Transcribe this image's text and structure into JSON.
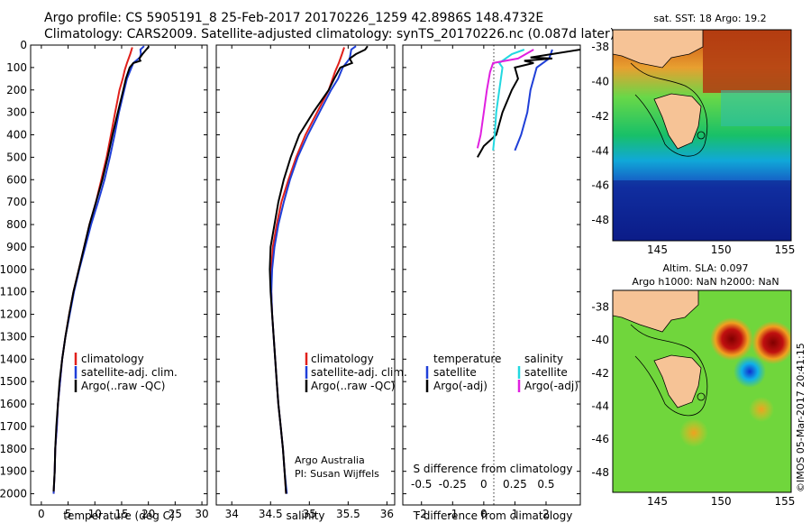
{
  "header": {
    "line1": "Argo profile: CS 5905191_8 25-Feb-2017 20170226_1259 42.8986S 148.4732E",
    "line2": "Climatology: CARS2009. Satellite-adjusted climatology: synTS_20170226.nc (0.087d later)"
  },
  "colors": {
    "climatology": "#e0201b",
    "satellite": "#1f3fd8",
    "argo": "#000000",
    "sat_salinity": "#22d8e0",
    "argo_salinity": "#e020e0"
  },
  "chart_data": [
    {
      "type": "line",
      "name": "temperature-panel",
      "xlabel": "temperature (deg C)",
      "xlim": [
        -2,
        31
      ],
      "ylim": [
        0,
        2050
      ],
      "y_reversed": true,
      "xticks": [
        0,
        5,
        10,
        15,
        20,
        25,
        30
      ],
      "yticks": [
        0,
        100,
        200,
        300,
        400,
        500,
        600,
        700,
        800,
        900,
        1000,
        1100,
        1200,
        1300,
        1400,
        1500,
        1600,
        1700,
        1800,
        1900,
        2000
      ],
      "legend": [
        "climatology",
        "satellite-adj. clim.",
        "Argo(..raw -QC)"
      ],
      "series": [
        {
          "name": "climatology",
          "color": "#e0201b",
          "points": [
            [
              17,
              10
            ],
            [
              16.6,
              40
            ],
            [
              16,
              80
            ],
            [
              15.6,
              110
            ],
            [
              15.2,
              150
            ],
            [
              14.6,
              200
            ],
            [
              13.8,
              300
            ],
            [
              13,
              400
            ],
            [
              12.2,
              500
            ],
            [
              11.2,
              600
            ],
            [
              10.2,
              700
            ],
            [
              9,
              800
            ],
            [
              8,
              900
            ],
            [
              7,
              1000
            ],
            [
              6,
              1100
            ],
            [
              5.2,
              1200
            ],
            [
              4.5,
              1300
            ],
            [
              3.9,
              1400
            ],
            [
              3.5,
              1500
            ],
            [
              3.1,
              1600
            ],
            [
              2.9,
              1700
            ],
            [
              2.6,
              1800
            ],
            [
              2.5,
              1900
            ],
            [
              2.3,
              2000
            ]
          ]
        },
        {
          "name": "satellite-adj. clim.",
          "color": "#1f3fd8",
          "points": [
            [
              19.2,
              5
            ],
            [
              18.5,
              20
            ],
            [
              18.6,
              40
            ],
            [
              18.4,
              55
            ],
            [
              17.2,
              80
            ],
            [
              16,
              150
            ],
            [
              15.5,
              200
            ],
            [
              14.5,
              300
            ],
            [
              13.7,
              400
            ],
            [
              12.8,
              500
            ],
            [
              11.8,
              600
            ],
            [
              10.6,
              700
            ],
            [
              9.3,
              800
            ],
            [
              8.2,
              900
            ],
            [
              7.1,
              1000
            ],
            [
              6.1,
              1100
            ],
            [
              5.3,
              1200
            ],
            [
              4.5,
              1300
            ],
            [
              3.9,
              1400
            ],
            [
              3.5,
              1500
            ],
            [
              3.1,
              1600
            ],
            [
              2.9,
              1700
            ],
            [
              2.6,
              1800
            ],
            [
              2.5,
              1900
            ],
            [
              2.3,
              2000
            ]
          ]
        },
        {
          "name": "Argo(..raw -QC)",
          "color": "#000000",
          "points": [
            [
              20.1,
              5
            ],
            [
              19.8,
              15
            ],
            [
              19.6,
              20
            ],
            [
              18.9,
              40
            ],
            [
              18.3,
              60
            ],
            [
              18.5,
              70
            ],
            [
              17.2,
              80
            ],
            [
              16.5,
              100
            ],
            [
              15.8,
              150
            ],
            [
              15.3,
              200
            ],
            [
              14.3,
              300
            ],
            [
              13.3,
              400
            ],
            [
              12.4,
              500
            ],
            [
              11.4,
              600
            ],
            [
              10.2,
              700
            ],
            [
              9,
              800
            ],
            [
              8,
              900
            ],
            [
              7,
              1000
            ],
            [
              6,
              1100
            ],
            [
              5.2,
              1200
            ],
            [
              4.5,
              1300
            ],
            [
              3.9,
              1400
            ],
            [
              3.4,
              1500
            ],
            [
              3.1,
              1600
            ],
            [
              2.8,
              1700
            ],
            [
              2.6,
              1800
            ],
            [
              2.5,
              1900
            ],
            [
              2.3,
              1990
            ]
          ]
        }
      ]
    },
    {
      "type": "line",
      "name": "salinity-panel",
      "xlabel": "salinity",
      "xlim": [
        33.8,
        36.1
      ],
      "ylim": [
        0,
        2050
      ],
      "y_reversed": true,
      "xticks": [
        34,
        34.5,
        35,
        35.5,
        36
      ],
      "legend": [
        "climatology",
        "satellite-adj. clim.",
        "Argo(..raw -QC)"
      ],
      "annotation": [
        "Argo Australia",
        "PI: Susan Wijffels"
      ],
      "series": [
        {
          "name": "climatology",
          "color": "#e0201b",
          "points": [
            [
              35.45,
              10
            ],
            [
              35.42,
              40
            ],
            [
              35.38,
              80
            ],
            [
              35.33,
              120
            ],
            [
              35.25,
              200
            ],
            [
              35.1,
              300
            ],
            [
              34.95,
              400
            ],
            [
              34.83,
              500
            ],
            [
              34.73,
              600
            ],
            [
              34.64,
              700
            ],
            [
              34.58,
              800
            ],
            [
              34.53,
              900
            ],
            [
              34.51,
              1000
            ],
            [
              34.51,
              1100
            ],
            [
              34.52,
              1200
            ],
            [
              34.54,
              1300
            ],
            [
              34.56,
              1400
            ],
            [
              34.58,
              1500
            ],
            [
              34.6,
              1600
            ],
            [
              34.63,
              1700
            ],
            [
              34.66,
              1800
            ],
            [
              34.68,
              1900
            ],
            [
              34.7,
              2000
            ]
          ]
        },
        {
          "name": "satellite-adj. clim.",
          "color": "#1f3fd8",
          "points": [
            [
              35.6,
              5
            ],
            [
              35.54,
              20
            ],
            [
              35.52,
              60
            ],
            [
              35.43,
              100
            ],
            [
              35.37,
              150
            ],
            [
              35.28,
              200
            ],
            [
              35.13,
              300
            ],
            [
              34.98,
              400
            ],
            [
              34.85,
              500
            ],
            [
              34.75,
              600
            ],
            [
              34.67,
              700
            ],
            [
              34.6,
              800
            ],
            [
              34.55,
              900
            ],
            [
              34.52,
              1000
            ],
            [
              34.51,
              1100
            ],
            [
              34.52,
              1200
            ],
            [
              34.54,
              1300
            ],
            [
              34.56,
              1400
            ],
            [
              34.58,
              1500
            ],
            [
              34.6,
              1600
            ],
            [
              34.63,
              1700
            ],
            [
              34.66,
              1800
            ],
            [
              34.68,
              1900
            ],
            [
              34.71,
              2000
            ]
          ]
        },
        {
          "name": "Argo(..raw -QC)",
          "color": "#000000",
          "points": [
            [
              35.75,
              5
            ],
            [
              35.72,
              20
            ],
            [
              35.6,
              40
            ],
            [
              35.52,
              60
            ],
            [
              35.55,
              80
            ],
            [
              35.4,
              100
            ],
            [
              35.32,
              150
            ],
            [
              35.25,
              200
            ],
            [
              35.05,
              300
            ],
            [
              34.87,
              400
            ],
            [
              34.76,
              500
            ],
            [
              34.67,
              600
            ],
            [
              34.6,
              700
            ],
            [
              34.55,
              800
            ],
            [
              34.5,
              900
            ],
            [
              34.49,
              1000
            ],
            [
              34.5,
              1100
            ],
            [
              34.52,
              1200
            ],
            [
              34.54,
              1300
            ],
            [
              34.56,
              1400
            ],
            [
              34.58,
              1500
            ],
            [
              34.6,
              1600
            ],
            [
              34.63,
              1700
            ],
            [
              34.66,
              1800
            ],
            [
              34.68,
              1900
            ],
            [
              34.7,
              2000
            ]
          ]
        }
      ]
    },
    {
      "type": "line",
      "name": "difference-panel",
      "xlabel": "T difference from climatology",
      "xlabel_top": "S difference from climatology",
      "xlim": [
        -2.6,
        3.1
      ],
      "ylim": [
        0,
        2050
      ],
      "y_reversed": true,
      "xticks": [
        -2,
        -1,
        0,
        1,
        2
      ],
      "xticks_top": [
        -0.5,
        -0.25,
        0,
        0.25,
        0.5
      ],
      "legend_titles": [
        "temperature",
        "salinity"
      ],
      "legend": [
        "satellite",
        "Argo(-adj)",
        "satellite",
        "Argo(-adj)"
      ],
      "series": [
        {
          "name": "satellite",
          "quantity": "temperature",
          "color": "#1f3fd8",
          "points": [
            [
              2.2,
              20
            ],
            [
              2.1,
              60
            ],
            [
              1.7,
              100
            ],
            [
              1.5,
              200
            ],
            [
              1.4,
              300
            ],
            [
              1.2,
              400
            ],
            [
              1,
              470
            ]
          ]
        },
        {
          "name": "Argo(-adj)",
          "quantity": "temperature",
          "color": "#000000",
          "points": [
            [
              3.1,
              20
            ],
            [
              1.5,
              55
            ],
            [
              2.2,
              60
            ],
            [
              1.3,
              70
            ],
            [
              1.6,
              80
            ],
            [
              1,
              100
            ],
            [
              1.1,
              150
            ],
            [
              0.9,
              200
            ],
            [
              0.6,
              300
            ],
            [
              0.4,
              400
            ],
            [
              0,
              450
            ],
            [
              -0.2,
              500
            ]
          ]
        },
        {
          "name": "satellite",
          "quantity": "salinity",
          "color": "#22d8e0",
          "points": [
            [
              1.3,
              20
            ],
            [
              0.9,
              40
            ],
            [
              0.5,
              80
            ],
            [
              0.6,
              100
            ],
            [
              0.5,
              200
            ],
            [
              0.4,
              300
            ],
            [
              0.35,
              400
            ],
            [
              0.3,
              470
            ]
          ]
        },
        {
          "name": "Argo(-adj)",
          "quantity": "salinity",
          "color": "#e020e0",
          "points": [
            [
              1.6,
              20
            ],
            [
              1.1,
              60
            ],
            [
              0.3,
              80
            ],
            [
              0.2,
              120
            ],
            [
              0.1,
              200
            ],
            [
              0,
              300
            ],
            [
              -0.1,
              400
            ],
            [
              -0.2,
              460
            ]
          ]
        }
      ]
    },
    {
      "type": "heatmap",
      "name": "sst-map",
      "title": "sat. SST: 18 Argo: 19.2",
      "xticks": [
        145,
        150,
        155
      ],
      "yticks": [
        -38,
        -40,
        -42,
        -44,
        -46,
        -48
      ]
    },
    {
      "type": "heatmap",
      "name": "sla-map",
      "title": [
        "Altim. SLA: 0.097",
        "Argo h1000: NaN h2000: NaN"
      ],
      "xticks": [
        145,
        150,
        155
      ],
      "yticks": [
        -38,
        -40,
        -42,
        -44,
        -46,
        -48
      ]
    }
  ],
  "footer_stamp": "©IMOS 05-Mar-2017 20:41:15"
}
